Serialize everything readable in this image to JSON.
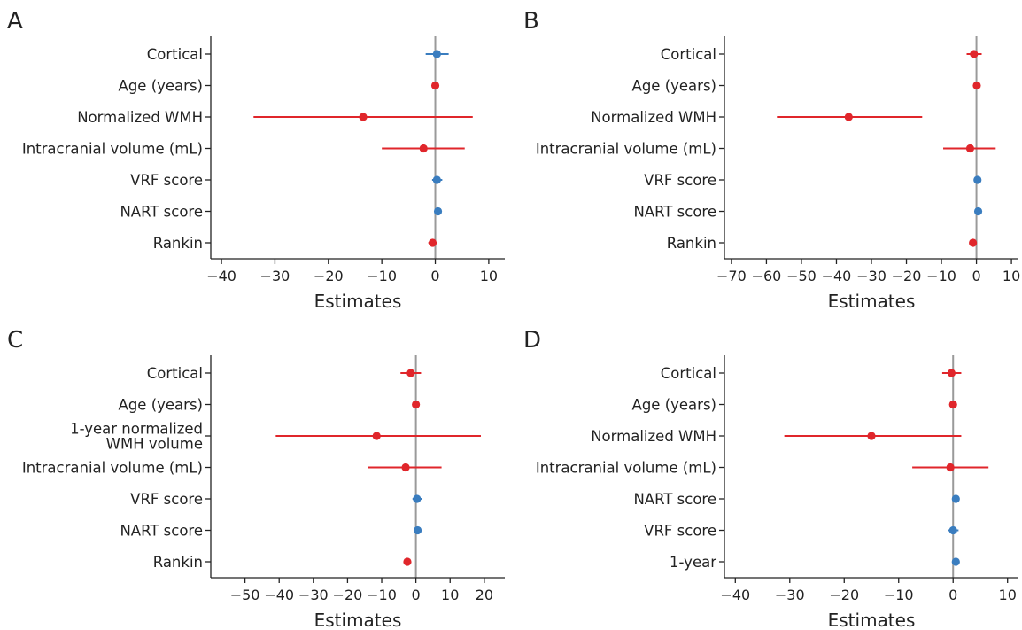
{
  "colors": {
    "positive": "#3a7dbf",
    "negative": "#e0262b",
    "zero_line": "#9a9a9a",
    "axis": "#222222"
  },
  "chart_data": [
    {
      "panel": "A",
      "type": "forest",
      "xlabel": "Estimates",
      "xlim": [
        -42,
        13
      ],
      "xticks": [
        -40,
        -30,
        -20,
        -10,
        0,
        10
      ],
      "xtick_labels": [
        "−40",
        "−30",
        "−20",
        "−10",
        "0",
        "10"
      ],
      "rows": [
        {
          "label": [
            "Cortical"
          ],
          "estimate": 0.3,
          "low": -1.8,
          "high": 2.5,
          "color": "blue"
        },
        {
          "label": [
            "Age (years)"
          ],
          "estimate": 0.0,
          "low": -0.3,
          "high": 0.3,
          "color": "red"
        },
        {
          "label": [
            "Normalized WMH"
          ],
          "estimate": -13.5,
          "low": -34.0,
          "high": 7.0,
          "color": "red"
        },
        {
          "label": [
            "Intracranial volume (mL)"
          ],
          "estimate": -2.2,
          "low": -10.0,
          "high": 5.5,
          "color": "red"
        },
        {
          "label": [
            "VRF score"
          ],
          "estimate": 0.3,
          "low": -0.6,
          "high": 1.3,
          "color": "blue"
        },
        {
          "label": [
            "NART score"
          ],
          "estimate": 0.5,
          "low": 0.2,
          "high": 0.8,
          "color": "blue"
        },
        {
          "label": [
            "Rankin"
          ],
          "estimate": -0.5,
          "low": -1.3,
          "high": 0.4,
          "color": "red"
        }
      ]
    },
    {
      "panel": "B",
      "type": "forest",
      "xlabel": "Estimates",
      "xlim": [
        -72,
        12
      ],
      "xticks": [
        -70,
        -60,
        -50,
        -40,
        -30,
        -20,
        -10,
        0,
        10
      ],
      "xtick_labels": [
        "−70",
        "−60",
        "−50",
        "−40",
        "−30",
        "−20",
        "−10",
        "0",
        "10"
      ],
      "rows": [
        {
          "label": [
            "Cortical"
          ],
          "estimate": -0.7,
          "low": -2.8,
          "high": 1.5,
          "color": "red"
        },
        {
          "label": [
            "Age (years)"
          ],
          "estimate": 0.1,
          "low": -0.3,
          "high": 0.5,
          "color": "red"
        },
        {
          "label": [
            "Normalized WMH"
          ],
          "estimate": -36.5,
          "low": -57.0,
          "high": -15.5,
          "color": "red"
        },
        {
          "label": [
            "Intracranial volume (mL)"
          ],
          "estimate": -1.8,
          "low": -9.5,
          "high": 5.5,
          "color": "red"
        },
        {
          "label": [
            "VRF score"
          ],
          "estimate": 0.3,
          "low": 0.0,
          "high": 0.7,
          "color": "blue"
        },
        {
          "label": [
            "NART score"
          ],
          "estimate": 0.5,
          "low": 0.2,
          "high": 0.8,
          "color": "blue"
        },
        {
          "label": [
            "Rankin"
          ],
          "estimate": -1.0,
          "low": -1.5,
          "high": -0.5,
          "color": "red"
        }
      ]
    },
    {
      "panel": "C",
      "type": "forest",
      "xlabel": "Estimates",
      "xlim": [
        -60,
        26
      ],
      "xticks": [
        -50,
        -40,
        -30,
        -20,
        -10,
        0,
        10,
        20
      ],
      "xtick_labels": [
        "−50",
        "−40",
        "−30",
        "−20",
        "−10",
        "0",
        "10",
        "20"
      ],
      "rows": [
        {
          "label": [
            "Cortical"
          ],
          "estimate": -1.5,
          "low": -4.5,
          "high": 1.5,
          "color": "red"
        },
        {
          "label": [
            "Age (years)"
          ],
          "estimate": 0.0,
          "low": -0.4,
          "high": 0.4,
          "color": "red"
        },
        {
          "label": [
            "1-year normalized",
            "WMH volume"
          ],
          "estimate": -11.5,
          "low": -41.0,
          "high": 19.0,
          "color": "red"
        },
        {
          "label": [
            "Intracranial volume (mL)"
          ],
          "estimate": -3.0,
          "low": -14.0,
          "high": 7.5,
          "color": "red"
        },
        {
          "label": [
            "VRF score"
          ],
          "estimate": 0.3,
          "low": -1.0,
          "high": 1.8,
          "color": "blue"
        },
        {
          "label": [
            "NART score"
          ],
          "estimate": 0.5,
          "low": 0.2,
          "high": 0.8,
          "color": "blue"
        },
        {
          "label": [
            "Rankin"
          ],
          "estimate": -2.5,
          "low": -3.5,
          "high": -1.5,
          "color": "red"
        }
      ]
    },
    {
      "panel": "D",
      "type": "forest",
      "xlabel": "Estimates",
      "xlim": [
        -42,
        12
      ],
      "xticks": [
        -40,
        -30,
        -20,
        -10,
        0,
        10
      ],
      "xtick_labels": [
        "−40",
        "−30",
        "−20",
        "−10",
        "0",
        "10"
      ],
      "rows": [
        {
          "label": [
            "Cortical"
          ],
          "estimate": -0.3,
          "low": -2.0,
          "high": 1.5,
          "color": "red"
        },
        {
          "label": [
            "Age (years)"
          ],
          "estimate": 0.0,
          "low": -0.3,
          "high": 0.3,
          "color": "red"
        },
        {
          "label": [
            "Normalized WMH"
          ],
          "estimate": -15.0,
          "low": -31.0,
          "high": 1.5,
          "color": "red"
        },
        {
          "label": [
            "Intracranial volume (mL)"
          ],
          "estimate": -0.5,
          "low": -7.5,
          "high": 6.5,
          "color": "red"
        },
        {
          "label": [
            "NART score"
          ],
          "estimate": 0.5,
          "low": 0.2,
          "high": 0.8,
          "color": "blue"
        },
        {
          "label": [
            "VRF score"
          ],
          "estimate": 0.0,
          "low": -1.0,
          "high": 1.0,
          "color": "blue"
        },
        {
          "label": [
            "1-year"
          ],
          "estimate": 0.5,
          "low": 0.1,
          "high": 0.9,
          "color": "blue"
        }
      ]
    }
  ]
}
